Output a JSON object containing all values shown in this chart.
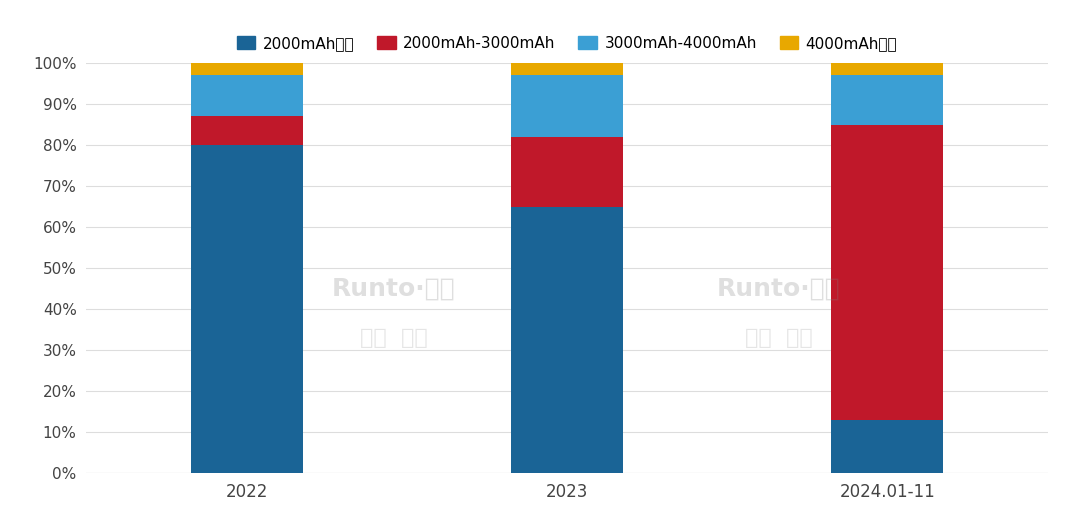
{
  "categories": [
    "2022",
    "2023",
    "2024.01-11"
  ],
  "series": {
    "2000mAh以下": [
      80,
      65,
      13
    ],
    "2000mAh-3000mAh": [
      7,
      17,
      72
    ],
    "3000mAh-4000mAh": [
      10,
      15,
      12
    ],
    "4000mAh以上": [
      3,
      3,
      3
    ]
  },
  "colors": {
    "2000mAh以下": "#1a6496",
    "2000mAh-3000mAh": "#c0182a",
    "3000mAh-4000mAh": "#3b9fd4",
    "4000mAh以上": "#e8a800"
  },
  "legend_order": [
    "2000mAh以下",
    "2000mAh-3000mAh",
    "3000mAh-4000mAh",
    "4000mAh以上"
  ],
  "ylim": [
    0,
    100
  ],
  "yticks": [
    0,
    10,
    20,
    30,
    40,
    50,
    60,
    70,
    80,
    90,
    100
  ],
  "ytick_labels": [
    "0%",
    "10%",
    "20%",
    "30%",
    "40%",
    "50%",
    "60%",
    "70%",
    "80%",
    "90%",
    "100%"
  ],
  "background_color": "#ffffff",
  "bar_width": 0.35,
  "bar_spacing": 1.0
}
